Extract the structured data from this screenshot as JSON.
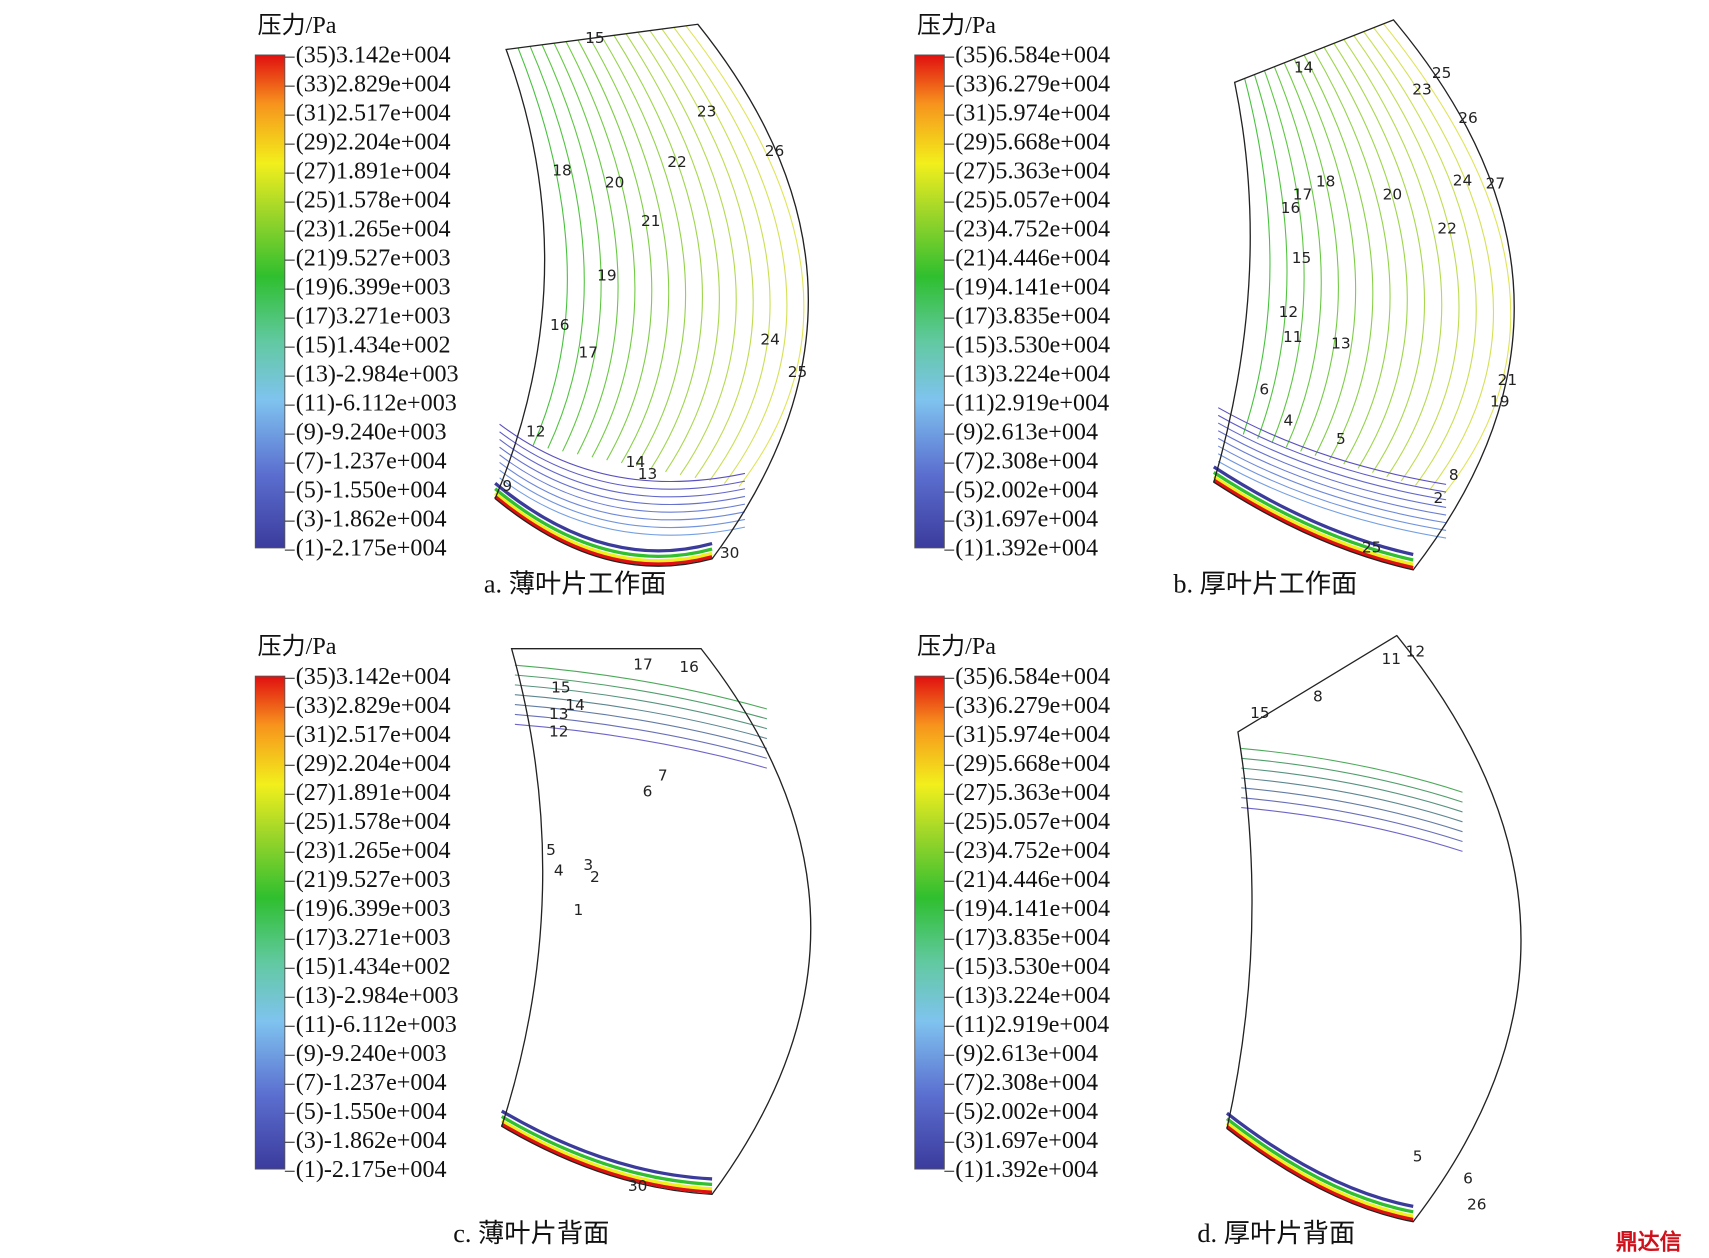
{
  "panels": [
    {
      "legend_title": "压力/Pa",
      "legend_labels": [
        "(35)3.142e+004",
        "(33)2.829e+004",
        "(31)2.517e+004",
        "(29)2.204e+004",
        "(27)1.891e+004",
        "(25)1.578e+004",
        "(23)1.265e+004",
        "(21)9.527e+003",
        "(19)6.399e+003",
        "(17)3.271e+003",
        "(15)1.434e+002",
        "(13)-2.984e+003",
        "(11)-6.112e+003",
        "(9)-9.240e+003",
        "(7)-1.237e+004",
        "(5)-1.550e+004",
        "(3)-1.862e+004",
        "(1)-2.175e+004"
      ],
      "caption": "a. 薄叶片工作面",
      "contour_labels": [
        "15",
        "23",
        "26",
        "18",
        "20",
        "22",
        "21",
        "19",
        "16",
        "17",
        "24",
        "25",
        "12",
        "14",
        "13",
        "9",
        "30"
      ]
    },
    {
      "legend_title": "压力/Pa",
      "legend_labels": [
        "(35)6.584e+004",
        "(33)6.279e+004",
        "(31)5.974e+004",
        "(29)5.668e+004",
        "(27)5.363e+004",
        "(25)5.057e+004",
        "(23)4.752e+004",
        "(21)4.446e+004",
        "(19)4.141e+004",
        "(17)3.835e+004",
        "(15)3.530e+004",
        "(13)3.224e+004",
        "(11)2.919e+004",
        "(9)2.613e+004",
        "(7)2.308e+004",
        "(5)2.002e+004",
        "(3)1.697e+004",
        "(1)1.392e+004"
      ],
      "caption": "b. 厚叶片工作面",
      "contour_labels": [
        "14",
        "25",
        "23",
        "26",
        "18",
        "17",
        "16",
        "20",
        "24",
        "27",
        "22",
        "15",
        "12",
        "11",
        "13",
        "21",
        "19",
        "6",
        "4",
        "5",
        "8",
        "2",
        "25"
      ]
    },
    {
      "legend_title": "压力/Pa",
      "legend_labels": [
        "(35)3.142e+004",
        "(33)2.829e+004",
        "(31)2.517e+004",
        "(29)2.204e+004",
        "(27)1.891e+004",
        "(25)1.578e+004",
        "(23)1.265e+004",
        "(21)9.527e+003",
        "(19)6.399e+003",
        "(17)3.271e+003",
        "(15)1.434e+002",
        "(13)-2.984e+003",
        "(11)-6.112e+003",
        "(9)-9.240e+003",
        "(7)-1.237e+004",
        "(5)-1.550e+004",
        "(3)-1.862e+004",
        "(1)-2.175e+004"
      ],
      "caption": "c. 薄叶片背面",
      "contour_labels": [
        "17",
        "16",
        "15",
        "14",
        "13",
        "12",
        "7",
        "6",
        "5",
        "4",
        "3",
        "2",
        "1",
        "30"
      ]
    },
    {
      "legend_title": "压力/Pa",
      "legend_labels": [
        "(35)6.584e+004",
        "(33)6.279e+004",
        "(31)5.974e+004",
        "(29)5.668e+004",
        "(27)5.363e+004",
        "(25)5.057e+004",
        "(23)4.752e+004",
        "(21)4.446e+004",
        "(19)4.141e+004",
        "(17)3.835e+004",
        "(15)3.530e+004",
        "(13)3.224e+004",
        "(11)2.919e+004",
        "(9)2.613e+004",
        "(7)2.308e+004",
        "(5)2.002e+004",
        "(3)1.697e+004",
        "(1)1.392e+004"
      ],
      "caption": "d. 厚叶片背面",
      "contour_labels": [
        "11",
        "12",
        "15",
        "8",
        "5",
        "6",
        "26"
      ]
    }
  ],
  "watermark": "鼎达信"
}
